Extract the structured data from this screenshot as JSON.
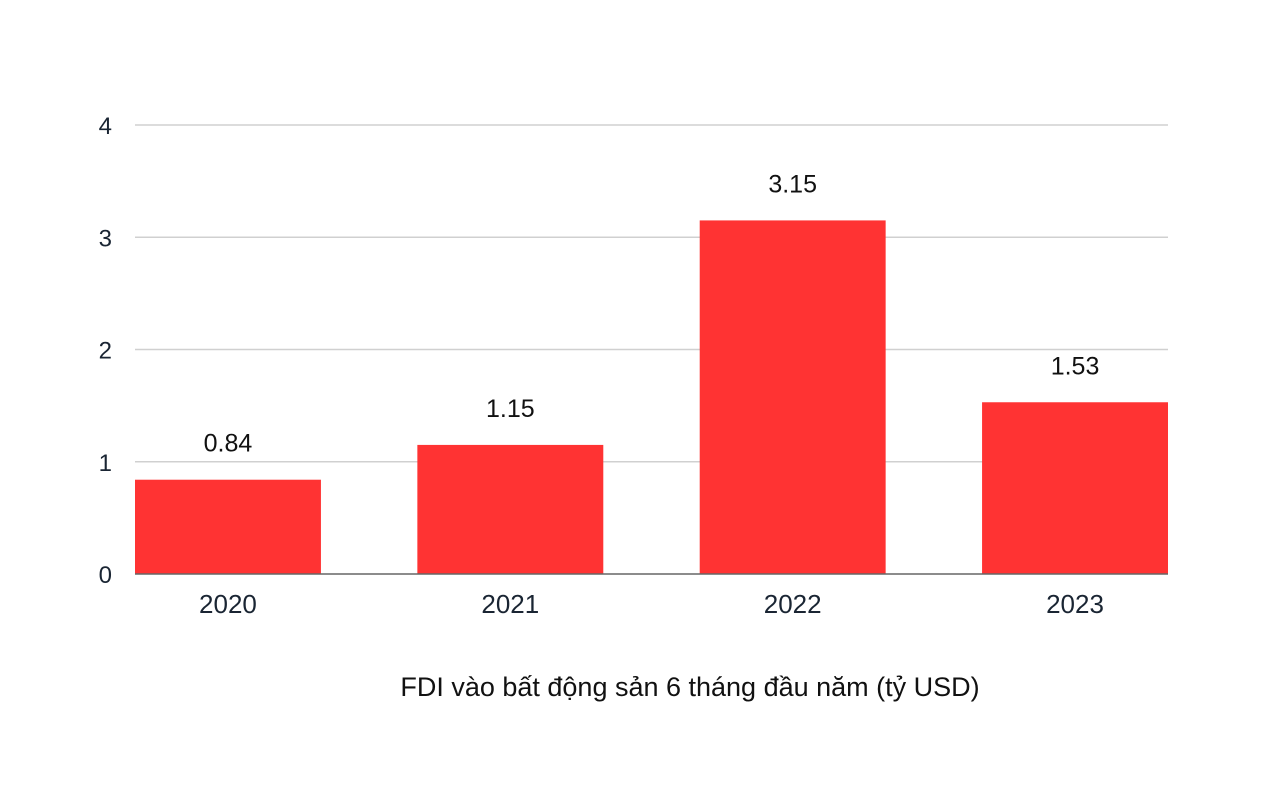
{
  "chart_data": {
    "type": "bar",
    "categories": [
      "2020",
      "2021",
      "2022",
      "2023"
    ],
    "values": [
      0.84,
      1.15,
      3.15,
      1.53
    ],
    "data_labels": [
      "0.84",
      "1.15",
      "3.15",
      "1.53"
    ],
    "y_ticks": [
      "0",
      "1",
      "2",
      "3",
      "4"
    ],
    "ylim": [
      0,
      4
    ],
    "grid": true,
    "title": "",
    "xlabel": "FDI vào bất động sản 6 tháng đầu năm (tỷ USD)",
    "ylabel": "",
    "bar_color": "#ff3333"
  }
}
